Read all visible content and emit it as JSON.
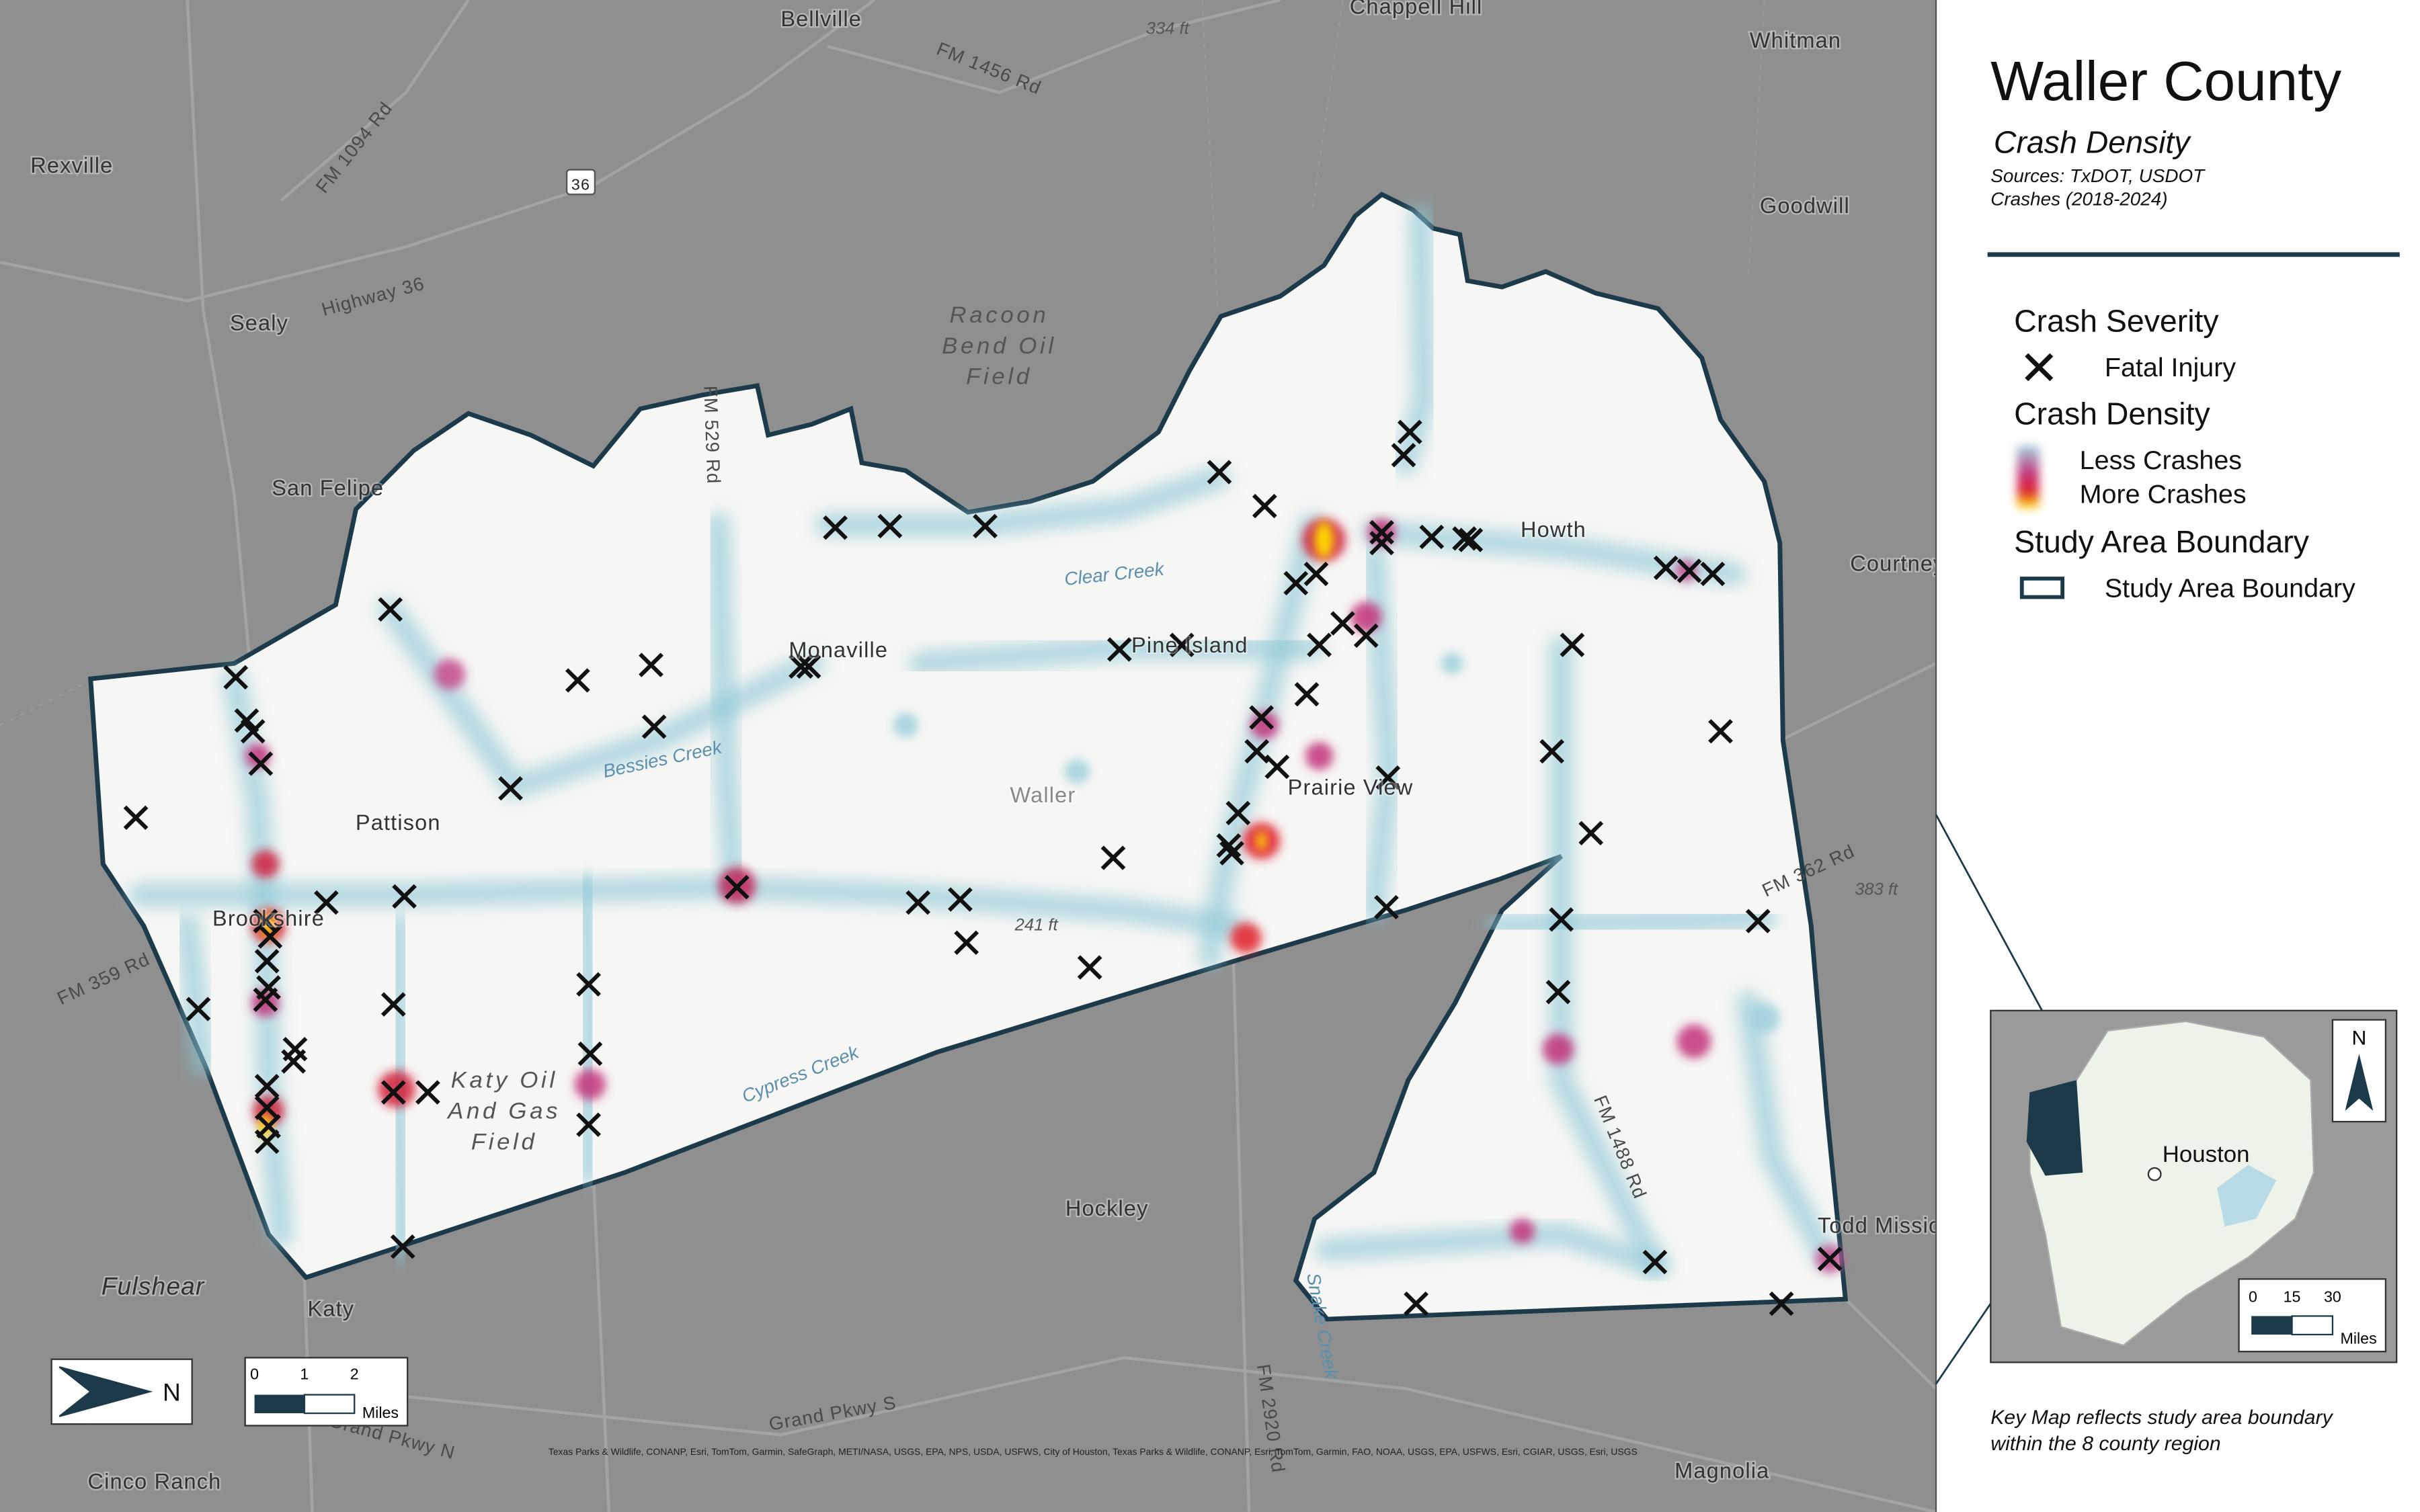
{
  "header": {
    "title": "Waller County",
    "subtitle": "Crash Density",
    "sources": [
      "Sources: TxDOT, USDOT",
      "Crashes (2018-2024)"
    ]
  },
  "legend": {
    "sections": [
      {
        "heading": "Crash Severity",
        "items": [
          "Fatal Injury"
        ]
      },
      {
        "heading": "Crash Density",
        "items": [
          "Less Crashes",
          "More Crashes"
        ]
      },
      {
        "heading": "Study Area Boundary",
        "items": [
          "Study Area Boundary"
        ]
      }
    ]
  },
  "map": {
    "places": [
      "Bellville",
      "Chappell Hill",
      "Whitman",
      "Rexville",
      "Goodwill",
      "Sealy",
      "San Felipe",
      "Howth",
      "Courtney",
      "Pattison",
      "Brookshire",
      "Monaville",
      "Pine Island",
      "Waller",
      "Prairie View",
      "Hockley",
      "Katy",
      "Fulshear",
      "Cinco Ranch",
      "Magnolia",
      "Todd Mission"
    ],
    "fields": [
      [
        "Racoon",
        "Bend Oil",
        "Field"
      ],
      [
        "Katy Oil",
        "And Gas",
        "Field"
      ]
    ],
    "roads": [
      "FM 1456 Rd",
      "FM 1094 Rd",
      "Highway 36",
      "FM 529 Rd",
      "FM 359 Rd",
      "FM 362 Rd",
      "FM 1488 Rd",
      "FM 2920 Rd",
      "Grand Pkwy S",
      "Grand Pkwy N",
      "36"
    ],
    "waters": [
      "Clear Creek",
      "Bessies Creek",
      "Cypress Creek",
      "Snake Creek"
    ],
    "elevations": [
      "334 ft",
      "241 ft",
      "383 ft"
    ],
    "north": "N",
    "scale": {
      "ticks": [
        "0",
        "1",
        "2"
      ],
      "unit": "Miles"
    },
    "attribution": "Texas Parks & Wildlife, CONANP, Esri, TomTom, Garmin, SafeGraph, METI/NASA, USGS, EPA, NPS, USDA, USFWS, City of Houston, Texas Parks & Wildlife, CONANP, Esri, TomTom, Garmin, FAO, NOAA, USGS, EPA, USFWS, Esri, CGIAR, USGS, Esri, USGS"
  },
  "key_map": {
    "label": "Houston",
    "north": "N",
    "scale": {
      "ticks": [
        "0",
        "15",
        "30"
      ],
      "unit": "Miles"
    },
    "note": [
      "Key Map reflects study area boundary",
      "within the 8 county region"
    ]
  }
}
